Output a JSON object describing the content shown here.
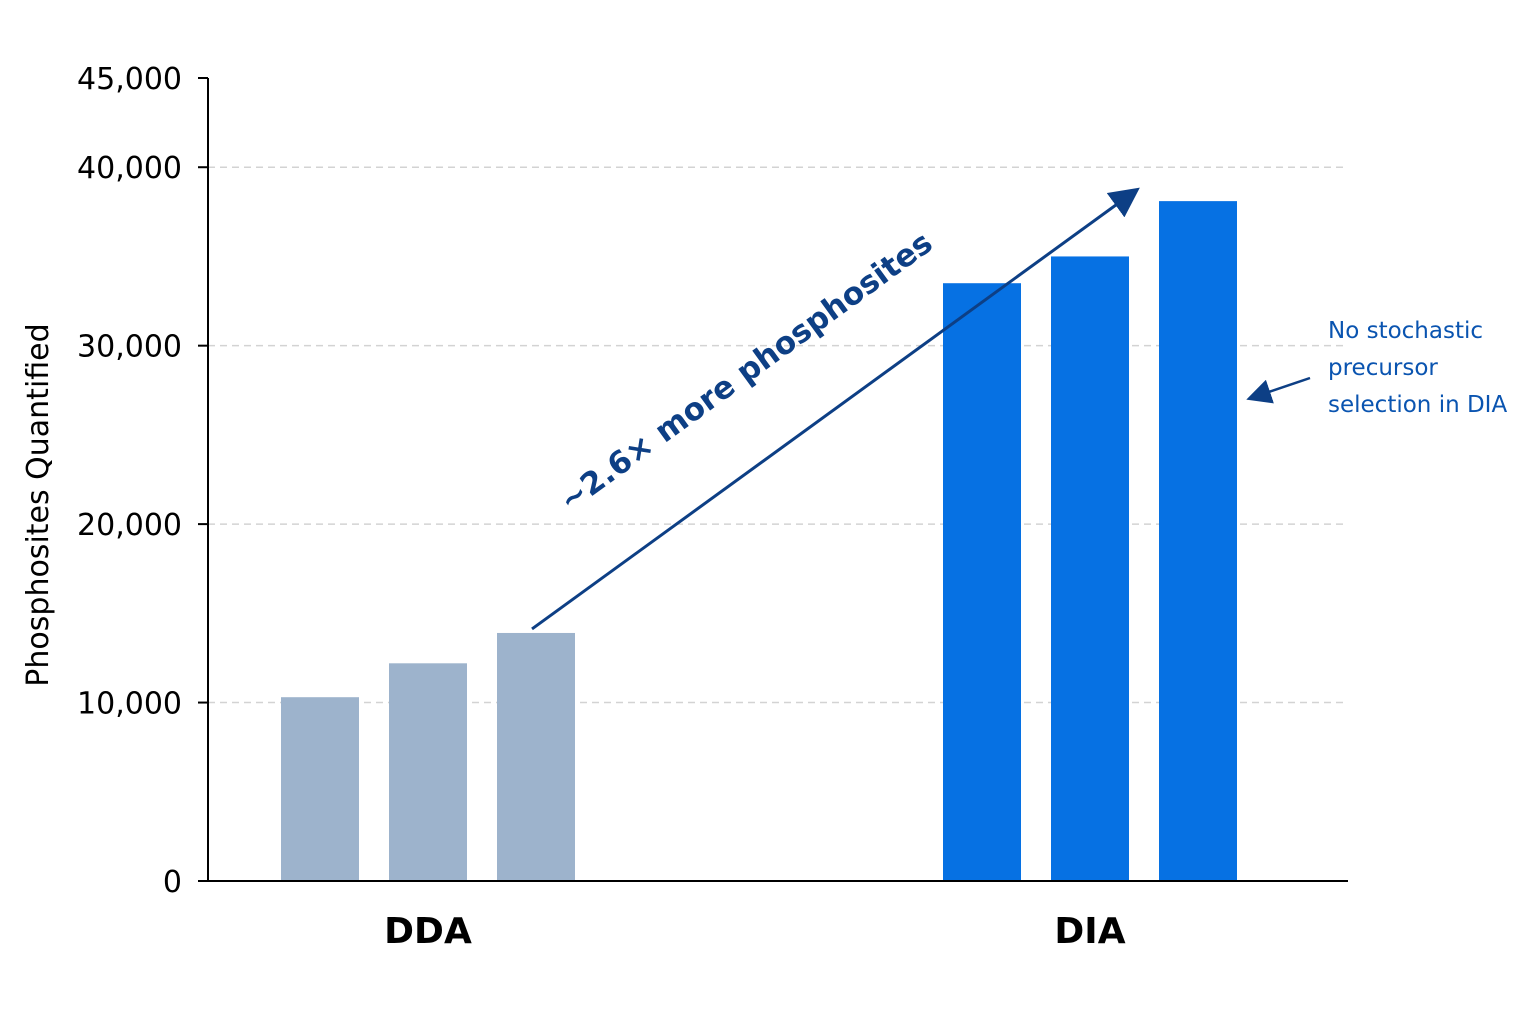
{
  "colors": {
    "dda": "#9db3cc",
    "dia": "#0671e3",
    "annotation": "#0d3f85",
    "side_note": "#0a54b0",
    "axis": "#000000",
    "grid": "#d3d3d3"
  },
  "chart_data": {
    "type": "bar",
    "ylabel": "Phosphosites Quantified",
    "ylim": [
      0,
      45000
    ],
    "yticks": [
      0,
      10000,
      20000,
      30000,
      40000,
      45000
    ],
    "ytick_labels": [
      "0",
      "10,000",
      "20,000",
      "30,000",
      "40,000",
      "45,000"
    ],
    "grid_lines": [
      10000,
      20000,
      30000,
      40000
    ],
    "grid": true,
    "groups": [
      {
        "label": "DDA",
        "color_key": "dda",
        "values": [
          10300,
          12200,
          13900
        ]
      },
      {
        "label": "DIA",
        "color_key": "dia",
        "values": [
          33500,
          35000,
          38100
        ]
      }
    ],
    "annotations": {
      "arrow_label": "~2.6×  more phosphosites",
      "side_note": [
        "No stochastic",
        "precursor",
        "selection in DIA"
      ]
    }
  }
}
